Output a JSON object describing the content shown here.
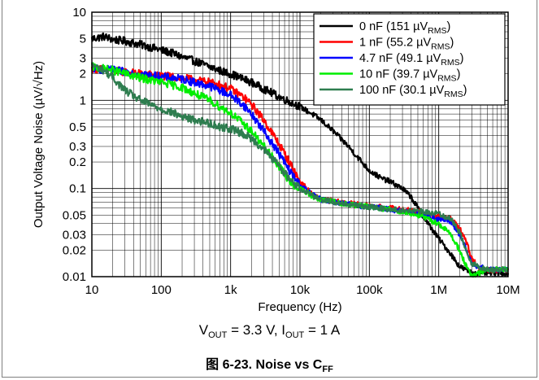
{
  "chart_data": {
    "type": "line",
    "x_scale": "log",
    "y_scale": "log",
    "xlim": [
      10,
      10000000
    ],
    "ylim": [
      0.01,
      10
    ],
    "xlabel": "Frequency (Hz)",
    "ylabel": "Output Voltage Noise (µV/√Hz)",
    "x_ticks": [
      {
        "v": 10,
        "label": "10"
      },
      {
        "v": 100,
        "label": "100"
      },
      {
        "v": 1000,
        "label": "1k"
      },
      {
        "v": 10000,
        "label": "10k"
      },
      {
        "v": 100000,
        "label": "100k"
      },
      {
        "v": 1000000,
        "label": "1M"
      },
      {
        "v": 10000000,
        "label": "10M"
      }
    ],
    "y_ticks": [
      {
        "v": 10,
        "label": "10"
      },
      {
        "v": 5,
        "label": "5"
      },
      {
        "v": 3,
        "label": "3"
      },
      {
        "v": 2,
        "label": "2"
      },
      {
        "v": 1,
        "label": "1"
      },
      {
        "v": 0.5,
        "label": "0.5"
      },
      {
        "v": 0.3,
        "label": "0.3"
      },
      {
        "v": 0.2,
        "label": "0.2"
      },
      {
        "v": 0.1,
        "label": "0.1"
      },
      {
        "v": 0.05,
        "label": "0.05"
      },
      {
        "v": 0.03,
        "label": "0.03"
      },
      {
        "v": 0.02,
        "label": "0.02"
      },
      {
        "v": 0.01,
        "label": "0.01"
      }
    ],
    "grid": true,
    "legend_position": "top-right",
    "series": [
      {
        "name": "0 nF (151 µVRMS)",
        "legend_main": "0 nF (151 ",
        "legend_unit": "µV",
        "legend_sub": "RMS",
        "legend_close": ")",
        "color": "#000000",
        "points": [
          [
            10,
            5.0
          ],
          [
            15,
            5.3
          ],
          [
            20,
            4.9
          ],
          [
            30,
            4.7
          ],
          [
            50,
            4.3
          ],
          [
            80,
            3.9
          ],
          [
            100,
            3.7
          ],
          [
            150,
            3.4
          ],
          [
            200,
            3.1
          ],
          [
            300,
            2.8
          ],
          [
            500,
            2.4
          ],
          [
            800,
            2.1
          ],
          [
            1000,
            2.0
          ],
          [
            1500,
            1.75
          ],
          [
            2000,
            1.6
          ],
          [
            3000,
            1.35
          ],
          [
            5000,
            1.1
          ],
          [
            8000,
            0.92
          ],
          [
            10000,
            0.85
          ],
          [
            15000,
            0.7
          ],
          [
            20000,
            0.6
          ],
          [
            30000,
            0.45
          ],
          [
            50000,
            0.3
          ],
          [
            70000,
            0.22
          ],
          [
            100000,
            0.16
          ],
          [
            150000,
            0.13
          ],
          [
            200000,
            0.12
          ],
          [
            300000,
            0.1
          ],
          [
            400000,
            0.08
          ],
          [
            500000,
            0.06
          ],
          [
            700000,
            0.04
          ],
          [
            1000000,
            0.027
          ],
          [
            1500000,
            0.018
          ],
          [
            2000000,
            0.013
          ],
          [
            3000000,
            0.011
          ],
          [
            5000000,
            0.011
          ],
          [
            10000000,
            0.011
          ]
        ]
      },
      {
        "name": "1 nF (55.2 µVRMS)",
        "legend_main": "1 nF (55.2 ",
        "legend_unit": "µV",
        "legend_sub": "RMS",
        "legend_close": ")",
        "color": "#ff0000",
        "points": [
          [
            10,
            2.3
          ],
          [
            20,
            2.2
          ],
          [
            30,
            2.1
          ],
          [
            50,
            2.0
          ],
          [
            100,
            1.9
          ],
          [
            200,
            1.8
          ],
          [
            300,
            1.7
          ],
          [
            500,
            1.6
          ],
          [
            700,
            1.5
          ],
          [
            1000,
            1.35
          ],
          [
            1500,
            1.1
          ],
          [
            2000,
            0.9
          ],
          [
            3000,
            0.6
          ],
          [
            5000,
            0.32
          ],
          [
            7000,
            0.2
          ],
          [
            10000,
            0.12
          ],
          [
            15000,
            0.085
          ],
          [
            20000,
            0.075
          ],
          [
            50000,
            0.068
          ],
          [
            100000,
            0.063
          ],
          [
            200000,
            0.06
          ],
          [
            300000,
            0.058
          ],
          [
            500000,
            0.055
          ],
          [
            700000,
            0.05
          ],
          [
            1000000,
            0.048
          ],
          [
            1500000,
            0.045
          ],
          [
            2000000,
            0.035
          ],
          [
            2500000,
            0.025
          ],
          [
            3000000,
            0.016
          ],
          [
            4000000,
            0.012
          ],
          [
            10000000,
            0.012
          ]
        ]
      },
      {
        "name": "4.7 nF (49.1 µVRMS)",
        "legend_main": "4.7 nF (49.1 ",
        "legend_unit": "µV",
        "legend_sub": "RMS",
        "legend_close": ")",
        "color": "#0000ff",
        "points": [
          [
            10,
            2.3
          ],
          [
            20,
            2.2
          ],
          [
            30,
            2.1
          ],
          [
            50,
            2.0
          ],
          [
            100,
            1.85
          ],
          [
            200,
            1.75
          ],
          [
            300,
            1.6
          ],
          [
            500,
            1.45
          ],
          [
            700,
            1.3
          ],
          [
            1000,
            1.15
          ],
          [
            1500,
            0.9
          ],
          [
            2000,
            0.7
          ],
          [
            3000,
            0.45
          ],
          [
            5000,
            0.25
          ],
          [
            7000,
            0.16
          ],
          [
            10000,
            0.11
          ],
          [
            15000,
            0.085
          ],
          [
            20000,
            0.075
          ],
          [
            50000,
            0.066
          ],
          [
            100000,
            0.062
          ],
          [
            200000,
            0.058
          ],
          [
            500000,
            0.052
          ],
          [
            1000000,
            0.045
          ],
          [
            1500000,
            0.042
          ],
          [
            2000000,
            0.03
          ],
          [
            2500000,
            0.02
          ],
          [
            3000000,
            0.014
          ],
          [
            5000000,
            0.012
          ],
          [
            10000000,
            0.012
          ]
        ]
      },
      {
        "name": "10 nF (39.7 µVRMS)",
        "legend_main": "10 nF (39.7 ",
        "legend_unit": "µV",
        "legend_sub": "RMS",
        "legend_close": ")",
        "color": "#00ee00",
        "points": [
          [
            10,
            2.4
          ],
          [
            20,
            2.2
          ],
          [
            30,
            2.0
          ],
          [
            50,
            1.8
          ],
          [
            100,
            1.6
          ],
          [
            200,
            1.4
          ],
          [
            300,
            1.2
          ],
          [
            500,
            1.0
          ],
          [
            700,
            0.85
          ],
          [
            1000,
            0.72
          ],
          [
            1500,
            0.55
          ],
          [
            2000,
            0.45
          ],
          [
            3000,
            0.3
          ],
          [
            5000,
            0.18
          ],
          [
            7000,
            0.12
          ],
          [
            10000,
            0.1
          ],
          [
            15000,
            0.082
          ],
          [
            20000,
            0.075
          ],
          [
            50000,
            0.066
          ],
          [
            100000,
            0.062
          ],
          [
            200000,
            0.058
          ],
          [
            500000,
            0.05
          ],
          [
            1000000,
            0.04
          ],
          [
            1500000,
            0.03
          ],
          [
            2000000,
            0.02
          ],
          [
            2500000,
            0.013
          ],
          [
            3000000,
            0.01
          ],
          [
            5000000,
            0.012
          ],
          [
            10000000,
            0.012
          ]
        ]
      },
      {
        "name": "100 nF (30.1 µVRMS)",
        "legend_main": "100 nF (30.1 ",
        "legend_unit": "µV",
        "legend_sub": "RMS",
        "legend_close": ")",
        "color": "#2e7d4f",
        "points": [
          [
            10,
            2.5
          ],
          [
            15,
            2.2
          ],
          [
            20,
            1.8
          ],
          [
            30,
            1.3
          ],
          [
            50,
            1.0
          ],
          [
            100,
            0.8
          ],
          [
            150,
            0.72
          ],
          [
            200,
            0.65
          ],
          [
            300,
            0.6
          ],
          [
            500,
            0.55
          ],
          [
            700,
            0.5
          ],
          [
            1000,
            0.48
          ],
          [
            1500,
            0.42
          ],
          [
            2000,
            0.37
          ],
          [
            3000,
            0.28
          ],
          [
            5000,
            0.18
          ],
          [
            7000,
            0.13
          ],
          [
            10000,
            0.1
          ],
          [
            15000,
            0.085
          ],
          [
            20000,
            0.075
          ],
          [
            50000,
            0.066
          ],
          [
            100000,
            0.062
          ],
          [
            200000,
            0.058
          ],
          [
            500000,
            0.055
          ],
          [
            1000000,
            0.052
          ],
          [
            1500000,
            0.045
          ],
          [
            2000000,
            0.032
          ],
          [
            2500000,
            0.02
          ],
          [
            3000000,
            0.014
          ],
          [
            5000000,
            0.012
          ],
          [
            10000000,
            0.012
          ]
        ]
      }
    ]
  },
  "captions": {
    "conditions": {
      "v": "V",
      "v_sub": "OUT",
      "v_rest": " = 3.3 V, I",
      "i_sub": "OUT",
      "i_rest": " = 1 A"
    },
    "figure": {
      "prefix": "图 6-23. Noise vs C",
      "sub": "FF"
    }
  }
}
